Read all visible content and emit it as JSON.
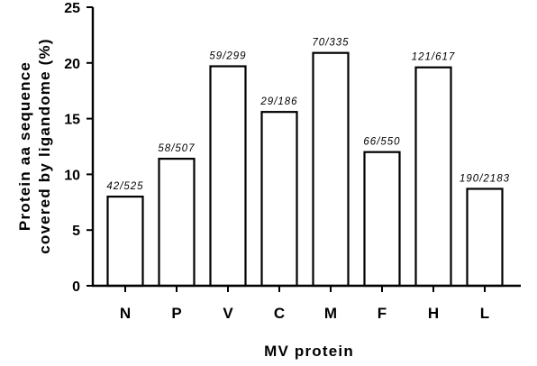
{
  "chart_data": {
    "type": "bar",
    "categories": [
      "N",
      "P",
      "V",
      "C",
      "M",
      "F",
      "H",
      "L"
    ],
    "values": [
      8.0,
      11.4,
      19.7,
      15.6,
      20.9,
      12.0,
      19.6,
      8.7
    ],
    "bar_labels": [
      "42/525",
      "58/507",
      "59/299",
      "29/186",
      "70/335",
      "66/550",
      "121/617",
      "190/2183"
    ],
    "title": "",
    "xlabel": "MV protein",
    "ylabel_lines": [
      "Protein aa sequence",
      "covered by ligandome (%)"
    ],
    "ylim": [
      0,
      25
    ],
    "yticks": [
      0,
      5,
      10,
      15,
      20,
      25
    ],
    "grid": false,
    "legend": "none"
  }
}
